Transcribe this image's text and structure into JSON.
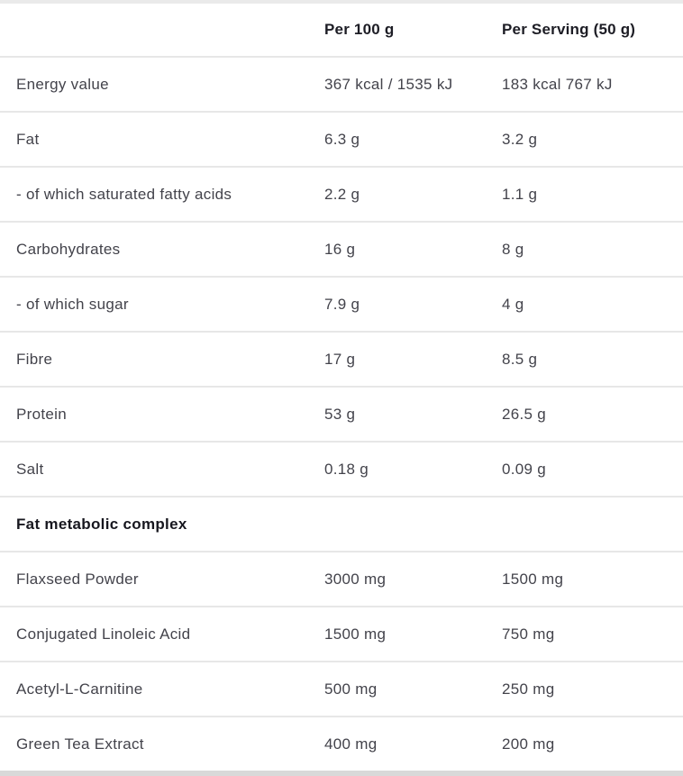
{
  "header": {
    "col_per_100g": "Per 100 g",
    "col_per_serving": "Per Serving (50 g)"
  },
  "rows": [
    {
      "type": "data",
      "label": "Energy value",
      "per_100g": "367 kcal / 1535 kJ",
      "per_serving": "183 kcal 767 kJ"
    },
    {
      "type": "data",
      "label": "Fat",
      "per_100g": "6.3 g",
      "per_serving": "3.2 g"
    },
    {
      "type": "data",
      "label": "- of which saturated fatty acids",
      "per_100g": "2.2 g",
      "per_serving": "1.1 g"
    },
    {
      "type": "data",
      "label": "Carbohydrates",
      "per_100g": "16 g",
      "per_serving": "8 g"
    },
    {
      "type": "data",
      "label": "- of which sugar",
      "per_100g": "7.9 g",
      "per_serving": "4 g"
    },
    {
      "type": "data",
      "label": "Fibre",
      "per_100g": "17 g",
      "per_serving": "8.5 g"
    },
    {
      "type": "data",
      "label": "Protein",
      "per_100g": "53 g",
      "per_serving": "26.5 g"
    },
    {
      "type": "data",
      "label": "Salt",
      "per_100g": "0.18 g",
      "per_serving": "0.09 g"
    },
    {
      "type": "section",
      "label": "Fat metabolic complex",
      "per_100g": "",
      "per_serving": ""
    },
    {
      "type": "data",
      "label": "Flaxseed Powder",
      "per_100g": "3000 mg",
      "per_serving": "1500 mg"
    },
    {
      "type": "data",
      "label": "Conjugated Linoleic Acid",
      "per_100g": "1500 mg",
      "per_serving": "750 mg"
    },
    {
      "type": "data",
      "label": "Acetyl-L-Carnitine",
      "per_100g": "500 mg",
      "per_serving": "250 mg"
    },
    {
      "type": "data",
      "label": "Green Tea Extract",
      "per_100g": "400 mg",
      "per_serving": "200 mg"
    }
  ],
  "colors": {
    "text_regular": "#43434b",
    "text_bold": "#1d1d25",
    "divider": "#e7e7e7",
    "top_strip": "#eaeaea",
    "bottom_strip": "#d9d9d9"
  }
}
